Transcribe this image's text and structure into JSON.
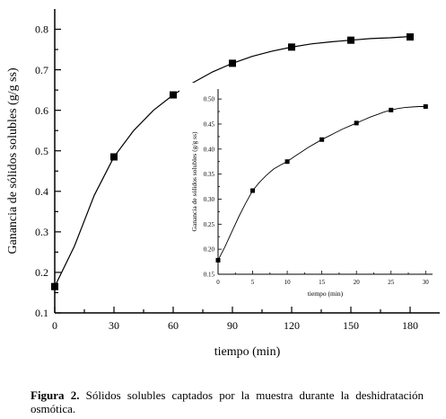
{
  "chart_data": [
    {
      "type": "line",
      "name": "main",
      "xlabel": "tiempo (min)",
      "ylabel": "Ganancia de sólidos solubles (g/g ss)",
      "xlim": [
        0,
        195
      ],
      "ylim": [
        0.1,
        0.85
      ],
      "xticks": [
        0,
        30,
        60,
        90,
        120,
        150,
        180
      ],
      "yticks": [
        0.1,
        0.2,
        0.3,
        0.4,
        0.5,
        0.6,
        0.7,
        0.8
      ],
      "ytick_labels": [
        "0.1",
        "0.2",
        "0.3",
        "0.4",
        "0.5",
        "0.6",
        "0.7",
        "0.8"
      ],
      "marker": "square",
      "grid": false,
      "series": [
        {
          "x": [
            0,
            30,
            60,
            90,
            120,
            150,
            180
          ],
          "y": [
            0.165,
            0.485,
            0.638,
            0.716,
            0.756,
            0.773,
            0.781
          ]
        }
      ],
      "curve": {
        "x": [
          0,
          10,
          20,
          30,
          40,
          50,
          60,
          70,
          80,
          90,
          100,
          110,
          120,
          130,
          140,
          150,
          160,
          170,
          180
        ],
        "y": [
          0.165,
          0.265,
          0.39,
          0.485,
          0.55,
          0.6,
          0.638,
          0.668,
          0.695,
          0.716,
          0.733,
          0.746,
          0.756,
          0.764,
          0.769,
          0.773,
          0.777,
          0.779,
          0.782
        ]
      }
    },
    {
      "type": "line",
      "name": "inset",
      "xlabel": "tiempo (min)",
      "ylabel": "Ganancia de sólidos solubles (g/g ss)",
      "xlim": [
        0,
        31
      ],
      "ylim": [
        0.15,
        0.52
      ],
      "xticks": [
        0,
        5,
        10,
        15,
        20,
        25,
        30
      ],
      "yticks": [
        0.15,
        0.2,
        0.25,
        0.3,
        0.35,
        0.4,
        0.45,
        0.5
      ],
      "ytick_labels": [
        "0.15",
        "0.20",
        "0.25",
        "0.30",
        "0.35",
        "0.40",
        "0.45",
        "0.50"
      ],
      "marker": "square",
      "grid": false,
      "series": [
        {
          "x": [
            0,
            5,
            10,
            15,
            20,
            25,
            30
          ],
          "y": [
            0.178,
            0.317,
            0.375,
            0.419,
            0.452,
            0.478,
            0.485
          ]
        }
      ],
      "curve": {
        "x": [
          0,
          1,
          2,
          3,
          4,
          5,
          6,
          7,
          8,
          9,
          10,
          11,
          12,
          13,
          14,
          15,
          16,
          17,
          18,
          19,
          20,
          21,
          22,
          23,
          24,
          25,
          26,
          27,
          28,
          29,
          30
        ],
        "y": [
          0.178,
          0.205,
          0.235,
          0.265,
          0.292,
          0.317,
          0.334,
          0.348,
          0.36,
          0.368,
          0.375,
          0.385,
          0.394,
          0.403,
          0.411,
          0.419,
          0.426,
          0.433,
          0.44,
          0.446,
          0.452,
          0.458,
          0.464,
          0.469,
          0.474,
          0.478,
          0.481,
          0.483,
          0.484,
          0.485,
          0.485
        ]
      }
    }
  ],
  "caption": {
    "label": "Figura 2.",
    "text": "Sólidos solubles captados por la muestra durante la deshidratación osmótica."
  }
}
